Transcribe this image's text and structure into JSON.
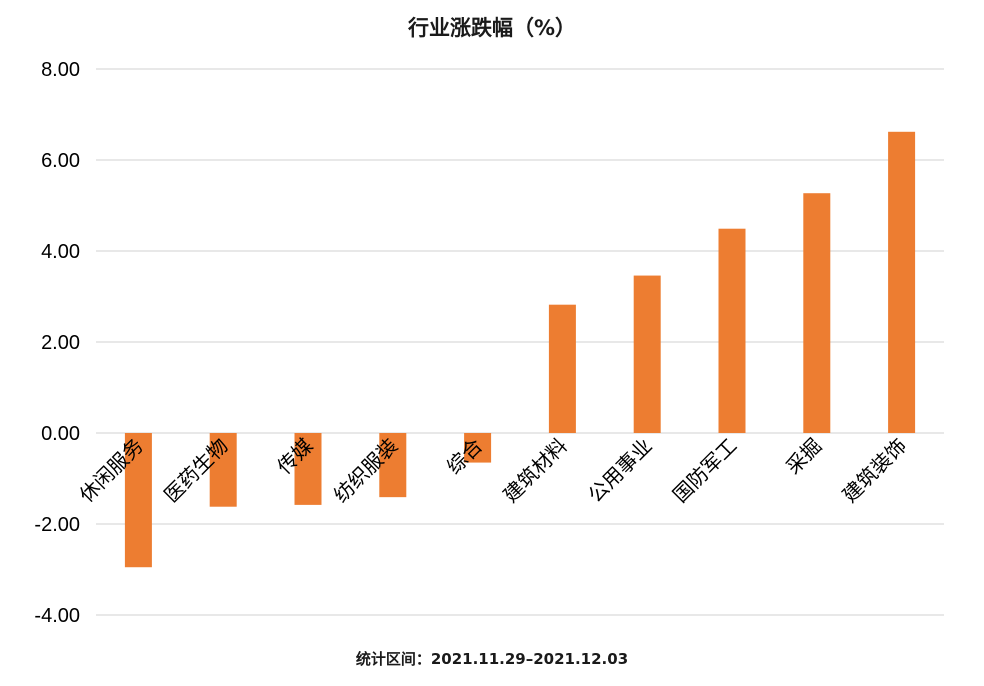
{
  "chart_data": {
    "type": "bar",
    "title": "行业涨跌幅（%）",
    "categories": [
      "休闲服务",
      "医药生物",
      "传媒",
      "纺织服装",
      "综合",
      "建筑材料",
      "公用事业",
      "国防军工",
      "采掘",
      "建筑装饰"
    ],
    "values": [
      -2.95,
      -1.62,
      -1.58,
      -1.41,
      -0.65,
      2.82,
      3.46,
      4.49,
      5.27,
      6.62
    ],
    "ylim": [
      -4,
      8
    ],
    "yticks": [
      8.0,
      6.0,
      4.0,
      2.0,
      0.0,
      -2.0,
      -4.0
    ],
    "ytick_labels": [
      "8.00",
      "6.00",
      "4.00",
      "2.00",
      "0.00",
      "-2.00",
      "-4.00"
    ],
    "grid": true,
    "bar_color": "#ED7D31",
    "grid_color": "#D9D9D9",
    "note": "统计区间：2021.11.29–2021.12.03"
  }
}
